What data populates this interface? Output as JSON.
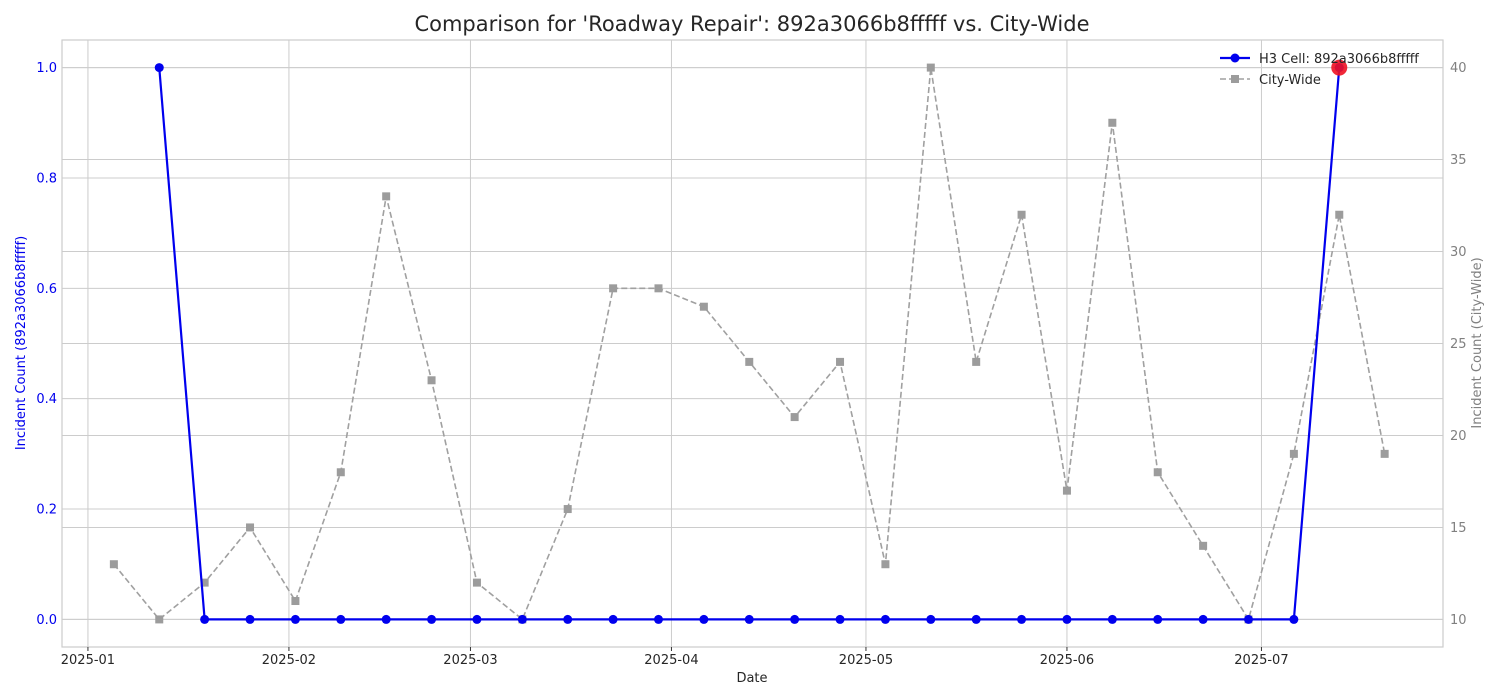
{
  "chart_data": {
    "type": "line",
    "title": "Comparison for 'Roadway Repair': 892a3066b8fffff vs. City-Wide",
    "xlabel": "Date",
    "ylabel_left": "Incident Count (892a3066b8fffff)",
    "ylabel_right": "Incident Count (City-Wide)",
    "x_ticks": [
      "2025-01",
      "2025-02",
      "2025-03",
      "2025-04",
      "2025-05",
      "2025-06",
      "2025-07"
    ],
    "ylim_left": [
      -0.05,
      1.05
    ],
    "yticks_left": [
      "0.0",
      "0.2",
      "0.4",
      "0.6",
      "0.8",
      "1.0"
    ],
    "ylim_right": [
      8.5,
      41.5
    ],
    "yticks_right": [
      "10",
      "15",
      "20",
      "25",
      "30",
      "35",
      "40"
    ],
    "grid": true,
    "legend_position": "top-right",
    "series": [
      {
        "name": "H3 Cell: 892a3066b8fffff",
        "axis": "left",
        "color": "#0000ee",
        "marker": "circle",
        "line_style": "solid",
        "x": [
          "2025-01-12",
          "2025-01-19",
          "2025-01-26",
          "2025-02-02",
          "2025-02-09",
          "2025-02-16",
          "2025-02-23",
          "2025-03-02",
          "2025-03-09",
          "2025-03-16",
          "2025-03-23",
          "2025-03-30",
          "2025-04-06",
          "2025-04-13",
          "2025-04-20",
          "2025-04-27",
          "2025-05-04",
          "2025-05-11",
          "2025-05-18",
          "2025-05-25",
          "2025-06-01",
          "2025-06-08",
          "2025-06-15",
          "2025-06-22",
          "2025-06-29",
          "2025-07-06",
          "2025-07-13"
        ],
        "values": [
          1,
          0,
          0,
          0,
          0,
          0,
          0,
          0,
          0,
          0,
          0,
          0,
          0,
          0,
          0,
          0,
          0,
          0,
          0,
          0,
          0,
          0,
          0,
          0,
          0,
          0,
          1
        ]
      },
      {
        "name": "City-Wide",
        "axis": "right",
        "color": "#999999",
        "marker": "square",
        "line_style": "dashed",
        "x": [
          "2025-01-05",
          "2025-01-12",
          "2025-01-19",
          "2025-01-26",
          "2025-02-02",
          "2025-02-09",
          "2025-02-16",
          "2025-02-23",
          "2025-03-02",
          "2025-03-09",
          "2025-03-16",
          "2025-03-23",
          "2025-03-30",
          "2025-04-06",
          "2025-04-13",
          "2025-04-20",
          "2025-04-27",
          "2025-05-04",
          "2025-05-11",
          "2025-05-18",
          "2025-05-25",
          "2025-06-01",
          "2025-06-08",
          "2025-06-15",
          "2025-06-22",
          "2025-06-29",
          "2025-07-06",
          "2025-07-13",
          "2025-07-20"
        ],
        "values": [
          13,
          10,
          12,
          15,
          11,
          18,
          33,
          23,
          12,
          10,
          16,
          28,
          28,
          27,
          24,
          21,
          24,
          13,
          40,
          24,
          32,
          17,
          37,
          18,
          14,
          10,
          19,
          32,
          19
        ]
      }
    ],
    "highlight": {
      "series": 0,
      "x": "2025-07-13",
      "value": 1,
      "color": "#ee1122"
    }
  }
}
